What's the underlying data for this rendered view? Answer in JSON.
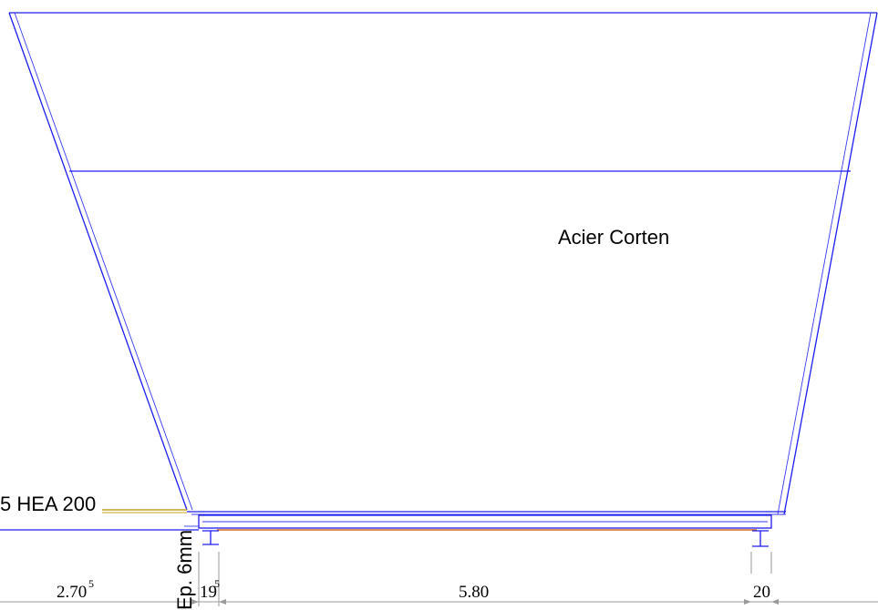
{
  "labels": {
    "material": "Acier Corten",
    "beam": "5 HEA 200",
    "thickness": "Ep. 6mm"
  },
  "dimensions": [
    {
      "main": "2.70",
      "sup": "5"
    },
    {
      "main": "19",
      "sup": "5"
    },
    {
      "main": "5.80",
      "sup": ""
    },
    {
      "main": "20",
      "sup": ""
    }
  ],
  "colors": {
    "outline": "#1d1df0",
    "leader": "#c8a020",
    "base_strip": "#d2691e",
    "dimension": "#9a9a9a"
  }
}
